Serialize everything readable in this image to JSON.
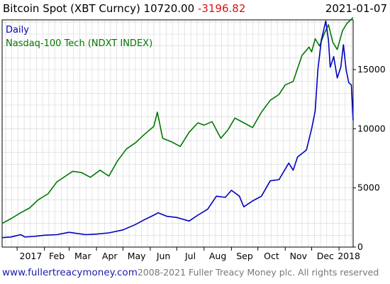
{
  "header": {
    "title": "Bitcoin Spot (XBT Curncy) 10720.00",
    "change": "-3196.82",
    "date": "2021-01-07"
  },
  "footer": {
    "url": "www.fullertreacymoney.com",
    "copyright": "2008-2021 Fuller Treacy Money plc. All rights reserved"
  },
  "colors": {
    "bitcoin": "#0000bb",
    "nasdaq": "#007700",
    "change": "#dd1111",
    "grid": "#d4d4d4"
  },
  "chart_data": {
    "type": "line",
    "title": "Bitcoin Spot (XBT Curncy) 10720.00 -3196.82",
    "x_tick_labels": [
      "2017",
      "Feb",
      "Mar",
      "Apr",
      "May",
      "Jun",
      "Jul",
      "Aug",
      "Sep",
      "Oct",
      "Nov",
      "Dec",
      "2018"
    ],
    "y_tick_labels": [
      "0",
      "5000",
      "10000",
      "15000"
    ],
    "y_ticks": [
      0,
      5000,
      10000,
      15000
    ],
    "ylim": [
      0,
      19200
    ],
    "xlim": [
      "2016-12-15",
      "2018-01-17"
    ],
    "grid": true,
    "legend_placement": "top-left",
    "series": [
      {
        "name": "Daily",
        "color": "#0000bb",
        "x": [
          "2016-12-15",
          "2016-12-25",
          "2017-01-05",
          "2017-01-10",
          "2017-01-20",
          "2017-02-01",
          "2017-02-15",
          "2017-03-01",
          "2017-03-10",
          "2017-03-20",
          "2017-04-01",
          "2017-04-15",
          "2017-05-01",
          "2017-05-15",
          "2017-05-25",
          "2017-06-05",
          "2017-06-10",
          "2017-06-20",
          "2017-07-01",
          "2017-07-15",
          "2017-07-25",
          "2017-08-05",
          "2017-08-15",
          "2017-08-25",
          "2017-09-01",
          "2017-09-10",
          "2017-09-15",
          "2017-09-25",
          "2017-10-05",
          "2017-10-15",
          "2017-10-25",
          "2017-11-05",
          "2017-11-10",
          "2017-11-15",
          "2017-11-25",
          "2017-12-01",
          "2017-12-05",
          "2017-12-08",
          "2017-12-12",
          "2017-12-17",
          "2017-12-20",
          "2017-12-22",
          "2017-12-26",
          "2017-12-30",
          "2018-01-03",
          "2018-01-06",
          "2018-01-09",
          "2018-01-12",
          "2018-01-15",
          "2018-01-17"
        ],
        "values": [
          800,
          850,
          1050,
          850,
          900,
          1000,
          1050,
          1250,
          1150,
          1050,
          1100,
          1200,
          1450,
          1900,
          2300,
          2700,
          2900,
          2600,
          2500,
          2200,
          2700,
          3200,
          4300,
          4200,
          4800,
          4300,
          3400,
          3900,
          4300,
          5600,
          5700,
          7100,
          6500,
          7600,
          8200,
          10000,
          11500,
          15000,
          17500,
          19100,
          17500,
          15200,
          16100,
          14300,
          15200,
          17100,
          15000,
          13900,
          13700,
          10720
        ]
      },
      {
        "name": "Nasdaq-100 Tech (NDXT INDEX)",
        "color": "#007700",
        "x": [
          "2016-12-15",
          "2016-12-25",
          "2017-01-05",
          "2017-01-15",
          "2017-01-25",
          "2017-02-05",
          "2017-02-15",
          "2017-02-25",
          "2017-03-05",
          "2017-03-15",
          "2017-03-25",
          "2017-04-05",
          "2017-04-15",
          "2017-04-25",
          "2017-05-05",
          "2017-05-15",
          "2017-05-25",
          "2017-06-05",
          "2017-06-09",
          "2017-06-15",
          "2017-06-25",
          "2017-07-05",
          "2017-07-15",
          "2017-07-25",
          "2017-08-01",
          "2017-08-10",
          "2017-08-20",
          "2017-08-28",
          "2017-09-05",
          "2017-09-15",
          "2017-09-25",
          "2017-10-05",
          "2017-10-15",
          "2017-10-25",
          "2017-11-01",
          "2017-11-10",
          "2017-11-20",
          "2017-11-28",
          "2017-12-01",
          "2017-12-05",
          "2017-12-10",
          "2017-12-15",
          "2017-12-20",
          "2017-12-25",
          "2017-12-30",
          "2018-01-05",
          "2018-01-10",
          "2018-01-17"
        ],
        "values": [
          2000,
          2400,
          2900,
          3300,
          4000,
          4500,
          5500,
          6000,
          6400,
          6300,
          5900,
          6500,
          6000,
          7300,
          8300,
          8800,
          9500,
          10200,
          11400,
          9200,
          8900,
          8500,
          9700,
          10500,
          10300,
          10600,
          9200,
          9900,
          10900,
          10500,
          10100,
          11400,
          12400,
          12900,
          13700,
          14000,
          16200,
          16900,
          16500,
          17600,
          17000,
          18000,
          18800,
          17300,
          16700,
          18300,
          18900,
          19400
        ]
      }
    ]
  }
}
